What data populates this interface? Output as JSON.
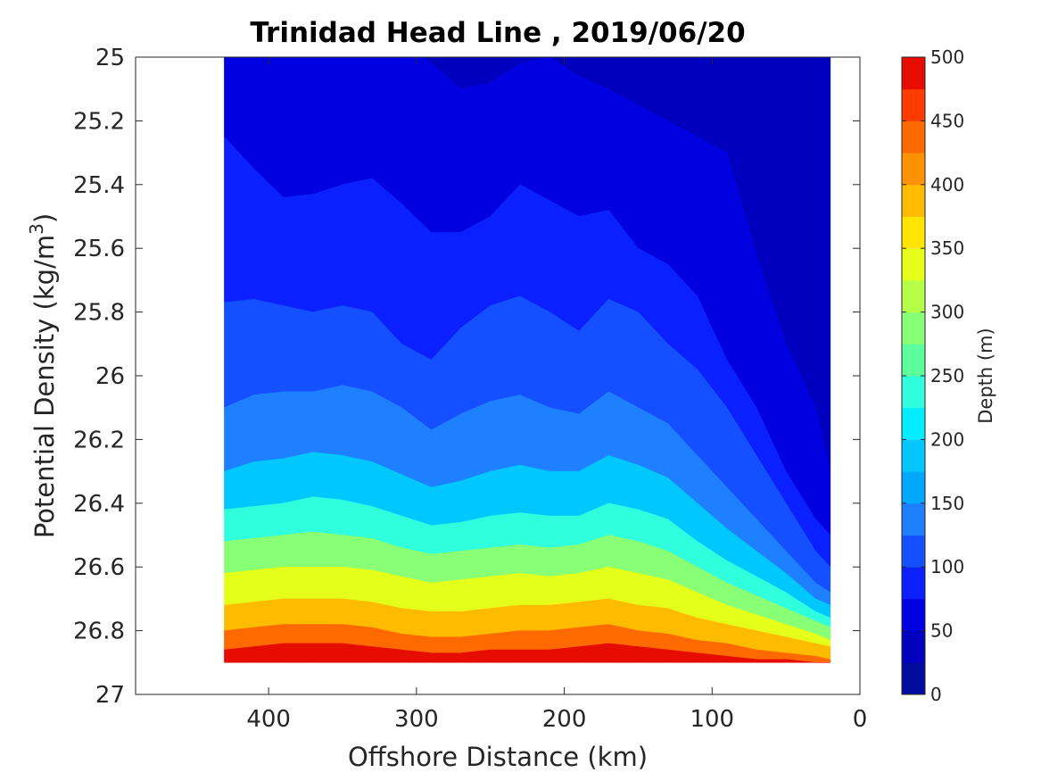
{
  "chart_data": {
    "type": "contour",
    "title": "Trinidad Head Line , 2019/06/20",
    "xlabel": "Offshore Distance (km)",
    "ylabel": "Potential Density (kg/m",
    "ylabel_sup": "3",
    "ylabel_end": ")",
    "xlim": [
      490,
      0
    ],
    "ylim": [
      25,
      27
    ],
    "y_reversed": true,
    "x_reversed": true,
    "xticks": [
      400,
      300,
      200,
      100,
      0
    ],
    "xtick_labels": [
      "400",
      "300",
      "200",
      "100",
      "0"
    ],
    "yticks": [
      25,
      25.2,
      25.4,
      25.6,
      25.8,
      26,
      26.2,
      26.4,
      26.6,
      26.8,
      27
    ],
    "ytick_labels": [
      "25",
      "25.2",
      "25.4",
      "25.6",
      "25.8",
      "26",
      "26.2",
      "26.4",
      "26.6",
      "26.8",
      "27"
    ],
    "grid": false,
    "colormap": "jet",
    "colorbar": {
      "label": "Depth (m)",
      "range": [
        0,
        500
      ],
      "levels": [
        0,
        25,
        50,
        75,
        100,
        125,
        150,
        175,
        200,
        225,
        250,
        275,
        300,
        325,
        350,
        375,
        400,
        425,
        450,
        475,
        500
      ],
      "ticks": [
        0,
        50,
        100,
        150,
        200,
        250,
        300,
        350,
        400,
        450,
        500
      ],
      "tick_labels": [
        "0",
        "50",
        "100",
        "150",
        "200",
        "250",
        "300",
        "350",
        "400",
        "450",
        "500"
      ],
      "colors": [
        "#000c9f",
        "#0000be",
        "#0000e1",
        "#0a20ff",
        "#1450ff",
        "#1e80ff",
        "#00a8ff",
        "#00c8ff",
        "#00ecff",
        "#30ffdd",
        "#5cff9c",
        "#88ff74",
        "#b5ff48",
        "#e4ff1a",
        "#ffe500",
        "#ffbb00",
        "#ff9200",
        "#ff6a00",
        "#ff3c00",
        "#e60c00",
        "#b30000"
      ]
    },
    "data_extent": {
      "x_offshore_max": 430,
      "x_offshore_min": 20,
      "density_max": 26.9
    },
    "distance_samples_km": [
      430,
      410,
      390,
      370,
      350,
      330,
      310,
      290,
      270,
      250,
      230,
      210,
      190,
      170,
      150,
      130,
      110,
      90,
      70,
      50,
      30,
      20
    ],
    "isopycnal_depth_contours": [
      {
        "depth": 50,
        "density": [
          24.95,
          24.95,
          24.95,
          24.95,
          24.95,
          24.95,
          24.95,
          25.02,
          25.1,
          25.08,
          25.02,
          25.0,
          25.06,
          25.1,
          25.15,
          25.2,
          25.25,
          25.3,
          25.62,
          25.9,
          26.1,
          26.3
        ]
      },
      {
        "depth": 75,
        "density": [
          25.25,
          25.35,
          25.44,
          25.43,
          25.4,
          25.38,
          25.46,
          25.55,
          25.55,
          25.5,
          25.4,
          25.45,
          25.5,
          25.48,
          25.6,
          25.65,
          25.75,
          25.95,
          26.1,
          26.3,
          26.45,
          26.5
        ]
      },
      {
        "depth": 100,
        "density": [
          25.77,
          25.76,
          25.78,
          25.8,
          25.78,
          25.8,
          25.9,
          25.95,
          25.85,
          25.78,
          25.75,
          25.8,
          25.86,
          25.76,
          25.8,
          25.9,
          25.98,
          26.1,
          26.25,
          26.4,
          26.55,
          26.6
        ]
      },
      {
        "depth": 125,
        "density": [
          26.1,
          26.06,
          26.05,
          26.05,
          26.03,
          26.05,
          26.1,
          26.17,
          26.12,
          26.08,
          26.06,
          26.1,
          26.12,
          26.05,
          26.1,
          26.15,
          26.25,
          26.35,
          26.45,
          26.55,
          26.65,
          26.68
        ]
      },
      {
        "depth": 150,
        "density": [
          26.3,
          26.27,
          26.26,
          26.24,
          26.25,
          26.27,
          26.31,
          26.35,
          26.33,
          26.3,
          26.28,
          26.3,
          26.3,
          26.25,
          26.28,
          26.32,
          26.4,
          26.48,
          26.55,
          26.62,
          26.7,
          26.72
        ]
      },
      {
        "depth": 200,
        "density": [
          26.42,
          26.41,
          26.4,
          26.38,
          26.39,
          26.41,
          26.44,
          26.47,
          26.46,
          26.44,
          26.43,
          26.44,
          26.44,
          26.4,
          26.42,
          26.45,
          26.52,
          26.58,
          26.63,
          26.68,
          26.74,
          26.76
        ]
      },
      {
        "depth": 250,
        "density": [
          26.52,
          26.51,
          26.5,
          26.49,
          26.5,
          26.51,
          26.54,
          26.56,
          26.55,
          26.54,
          26.53,
          26.54,
          26.53,
          26.5,
          26.52,
          26.55,
          26.6,
          26.65,
          26.69,
          26.73,
          26.77,
          26.79
        ]
      },
      {
        "depth": 300,
        "density": [
          26.62,
          26.61,
          26.6,
          26.6,
          26.6,
          26.61,
          26.63,
          26.65,
          26.64,
          26.63,
          26.62,
          26.63,
          26.62,
          26.6,
          26.62,
          26.64,
          26.68,
          26.72,
          26.75,
          26.78,
          26.81,
          26.83
        ]
      },
      {
        "depth": 350,
        "density": [
          26.72,
          26.71,
          26.7,
          26.7,
          26.7,
          26.71,
          26.73,
          26.74,
          26.74,
          26.73,
          26.72,
          26.72,
          26.71,
          26.7,
          26.72,
          26.73,
          26.76,
          26.78,
          26.8,
          26.82,
          26.84,
          26.85
        ]
      },
      {
        "depth": 400,
        "density": [
          26.8,
          26.79,
          26.78,
          26.78,
          26.78,
          26.79,
          26.81,
          26.82,
          26.82,
          26.81,
          26.8,
          26.8,
          26.79,
          26.78,
          26.8,
          26.81,
          26.83,
          26.84,
          26.86,
          26.87,
          26.88,
          26.89
        ]
      },
      {
        "depth": 450,
        "density": [
          26.86,
          26.85,
          26.84,
          26.84,
          26.84,
          26.85,
          26.86,
          26.87,
          26.87,
          26.86,
          26.86,
          26.86,
          26.85,
          26.84,
          26.85,
          26.86,
          26.87,
          26.88,
          26.89,
          26.89,
          26.9,
          26.9
        ]
      }
    ]
  }
}
